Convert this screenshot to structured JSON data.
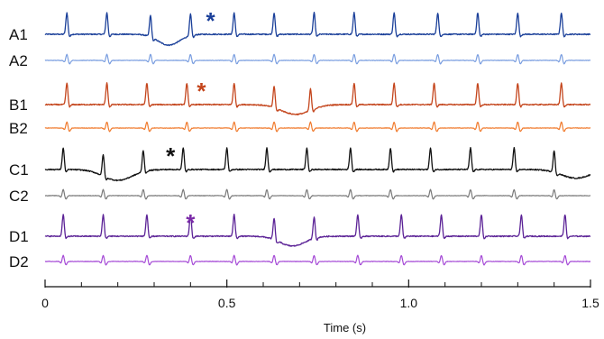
{
  "chart_data": {
    "type": "line",
    "title": "",
    "xlabel": "Time (s)",
    "ylabel": "",
    "xlim": [
      0,
      1.5
    ],
    "x_ticks": [
      {
        "value": 0,
        "label": "0"
      },
      {
        "value": 0.5,
        "label": "0.5"
      },
      {
        "value": 1.0,
        "label": "1.0"
      },
      {
        "value": 1.5,
        "label": "1.5"
      }
    ],
    "x_minor_ticks": [
      0.1,
      0.2,
      0.3,
      0.4,
      0.6,
      0.7,
      0.8,
      0.9,
      1.1,
      1.2,
      1.3,
      1.4
    ],
    "grid": false,
    "legend": "none",
    "series": [
      {
        "name": "A1",
        "color": "#1a3f99",
        "spikes": [
          0.06,
          0.17,
          0.29,
          0.4,
          0.52,
          0.63,
          0.74,
          0.85,
          0.96,
          1.08,
          1.19,
          1.3,
          1.42
        ],
        "deflections": [
          {
            "t": 0.34,
            "depth": -1.0,
            "width": 0.03
          }
        ],
        "marker": {
          "t": 0.455,
          "label": "*",
          "color": "#1a3f99"
        }
      },
      {
        "name": "A2",
        "color": "#7a9ee0",
        "spikes": [
          0.06,
          0.17,
          0.29,
          0.4,
          0.52,
          0.63,
          0.74,
          0.85,
          0.96,
          1.08,
          1.19,
          1.3,
          1.42
        ],
        "deflections": [],
        "marker": null
      },
      {
        "name": "B1",
        "color": "#c4451c",
        "spikes": [
          0.06,
          0.17,
          0.28,
          0.39,
          0.52,
          0.63,
          0.73,
          0.85,
          0.96,
          1.07,
          1.19,
          1.3,
          1.42
        ],
        "deflections": [
          {
            "t": 0.69,
            "depth": -0.9,
            "width": 0.04
          }
        ],
        "marker": {
          "t": 0.43,
          "label": "*",
          "color": "#c4451c"
        }
      },
      {
        "name": "B2",
        "color": "#f07a2c",
        "spikes": [
          0.06,
          0.17,
          0.28,
          0.39,
          0.52,
          0.63,
          0.73,
          0.85,
          0.96,
          1.07,
          1.19,
          1.3,
          1.42
        ],
        "deflections": [],
        "marker": null
      },
      {
        "name": "C1",
        "color": "#111111",
        "spikes": [
          0.05,
          0.16,
          0.27,
          0.38,
          0.5,
          0.61,
          0.72,
          0.84,
          0.95,
          1.06,
          1.17,
          1.29,
          1.4
        ],
        "deflections": [
          {
            "t": 0.2,
            "depth": -1.0,
            "width": 0.04
          },
          {
            "t": 1.46,
            "depth": -0.8,
            "width": 0.04
          }
        ],
        "marker": {
          "t": 0.345,
          "label": "*",
          "color": "#111111"
        }
      },
      {
        "name": "C2",
        "color": "#7a7a7a",
        "spikes": [
          0.05,
          0.16,
          0.27,
          0.38,
          0.5,
          0.61,
          0.72,
          0.84,
          0.95,
          1.06,
          1.17,
          1.29,
          1.4
        ],
        "deflections": [],
        "marker": null
      },
      {
        "name": "D1",
        "color": "#5b2296",
        "spikes": [
          0.05,
          0.16,
          0.28,
          0.4,
          0.52,
          0.63,
          0.74,
          0.86,
          0.98,
          1.09,
          1.2,
          1.31,
          1.43
        ],
        "deflections": [
          {
            "t": 0.68,
            "depth": -0.9,
            "width": 0.035
          }
        ],
        "marker": {
          "t": 0.4,
          "label": "*",
          "color": "#7b2aa8"
        }
      },
      {
        "name": "D2",
        "color": "#a54ad6",
        "spikes": [
          0.05,
          0.16,
          0.28,
          0.4,
          0.52,
          0.63,
          0.74,
          0.86,
          0.98,
          1.09,
          1.2,
          1.31,
          1.43
        ],
        "deflections": [],
        "marker": null
      }
    ]
  }
}
